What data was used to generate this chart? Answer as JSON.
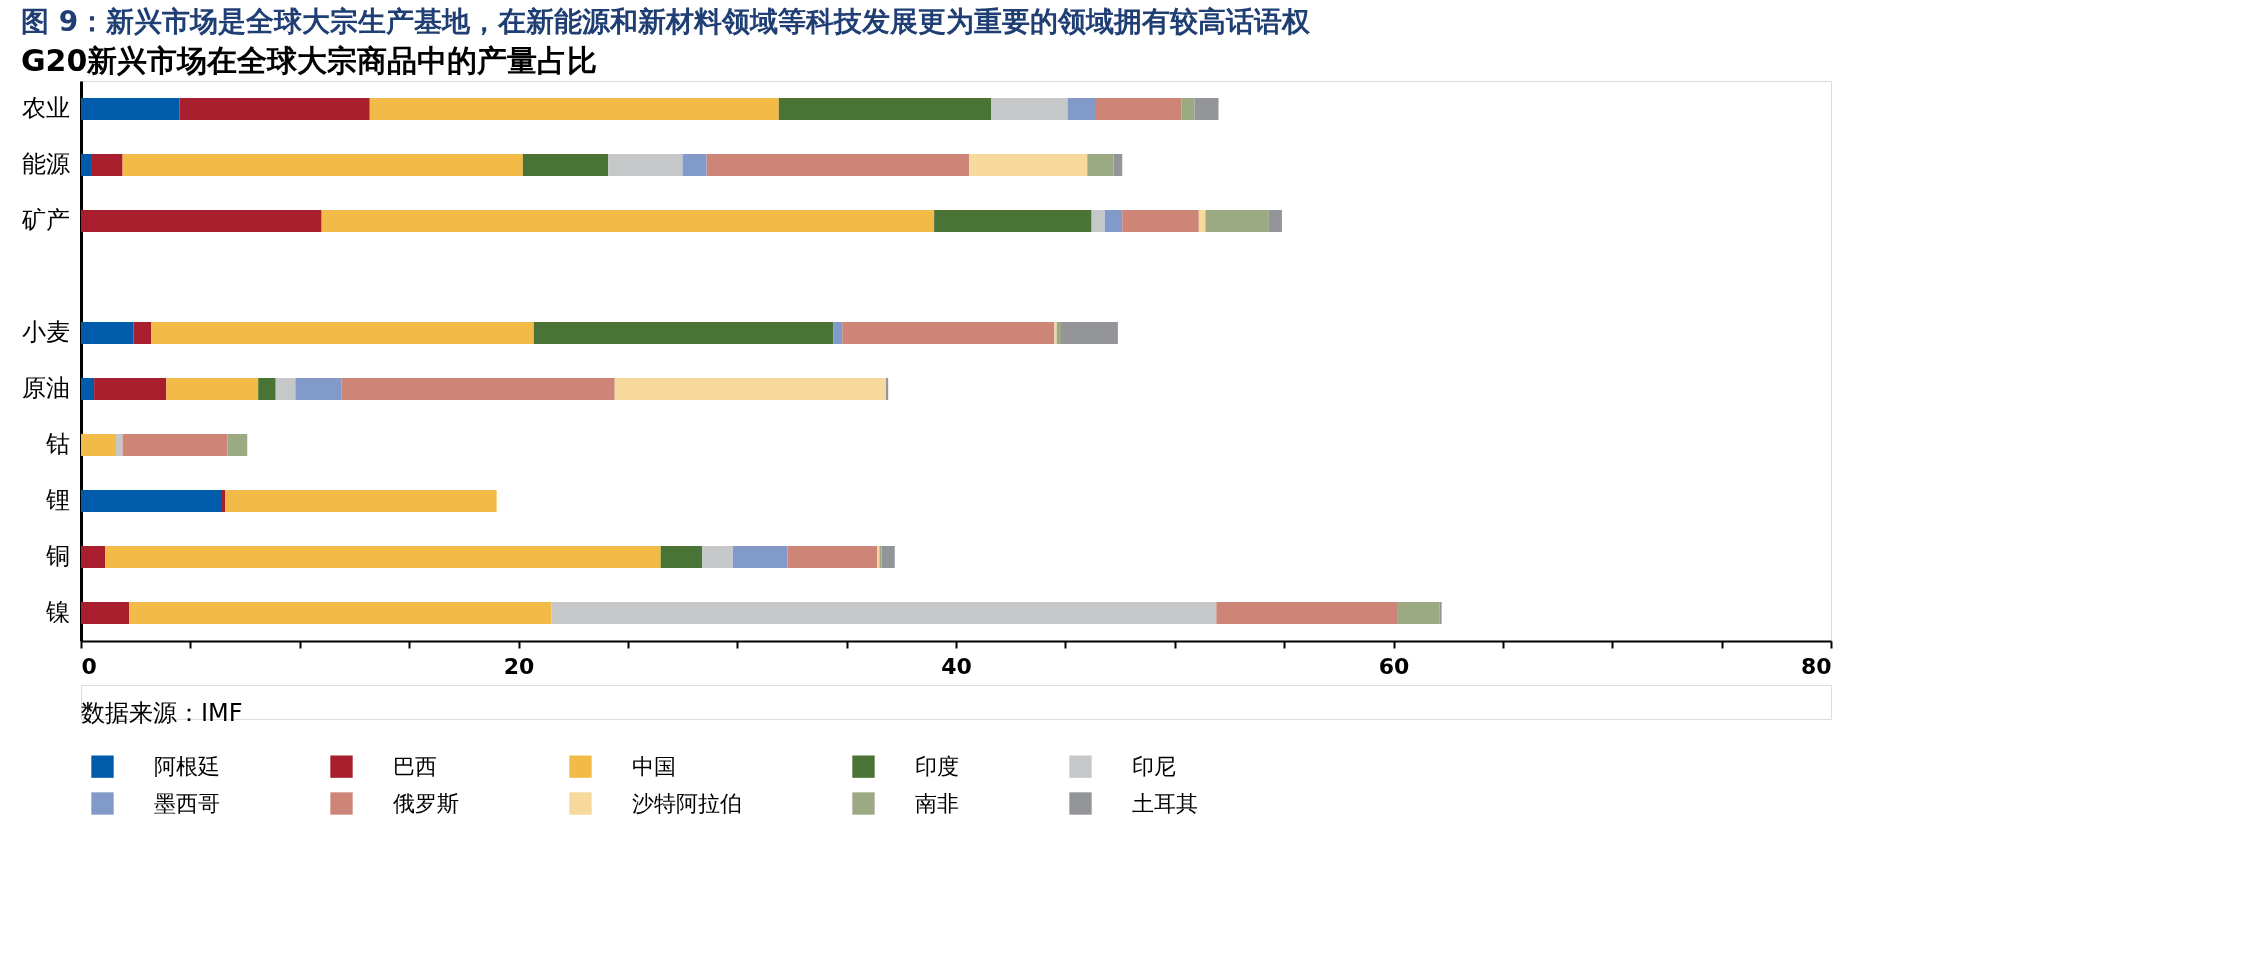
{
  "chart_data": {
    "type": "bar",
    "orientation": "horizontal",
    "stacked": true,
    "title": "图 9：新兴市场是全球大宗生产基地，在新能源和新材料领域等科技发展更为重要的领域拥有较高话语权",
    "subtitle": "G20新兴市场在全球大宗商品中的产量占比",
    "categories": [
      "农业",
      "能源",
      "矿产",
      null,
      "小麦",
      "原油",
      "钴",
      "锂",
      "铜",
      "镍"
    ],
    "series": [
      {
        "name": "阿根廷",
        "color": "#005bab",
        "values": [
          4.5,
          0.5,
          null,
          null,
          2.4,
          0.6,
          null,
          6.4,
          null,
          null
        ]
      },
      {
        "name": "巴西",
        "color": "#a81e2d",
        "values": [
          8.7,
          1.4,
          11.0,
          null,
          0.8,
          3.3,
          null,
          0.2,
          1.1,
          2.2
        ]
      },
      {
        "name": "中国",
        "color": "#f2bb48",
        "values": [
          18.7,
          18.3,
          28.0,
          null,
          17.5,
          4.2,
          1.6,
          12.4,
          25.4,
          19.3
        ]
      },
      {
        "name": "印度",
        "color": "#4a7435",
        "values": [
          9.7,
          3.9,
          7.2,
          null,
          13.7,
          0.8,
          null,
          null,
          1.9,
          null
        ]
      },
      {
        "name": "印尼",
        "color": "#c6c7c9",
        "values": [
          3.5,
          3.4,
          0.6,
          null,
          null,
          0.9,
          0.3,
          null,
          1.4,
          30.4
        ]
      },
      {
        "name": "墨西哥",
        "color": "#829aca",
        "values": [
          1.3,
          1.1,
          0.8,
          null,
          0.4,
          2.1,
          null,
          null,
          2.5,
          null
        ]
      },
      {
        "name": "俄罗斯",
        "color": "#cd8577",
        "values": [
          3.9,
          12.0,
          3.5,
          null,
          9.7,
          12.5,
          4.8,
          null,
          4.1,
          8.3
        ]
      },
      {
        "name": "沙特阿拉伯",
        "color": "#f7d99e",
        "values": [
          null,
          5.4,
          0.3,
          null,
          0.1,
          12.4,
          null,
          null,
          0.1,
          null
        ]
      },
      {
        "name": "南非",
        "color": "#9caa83",
        "values": [
          0.6,
          1.2,
          2.9,
          null,
          0.2,
          null,
          0.9,
          null,
          0.1,
          1.9
        ]
      },
      {
        "name": "土耳其",
        "color": "#949599",
        "values": [
          1.1,
          0.4,
          0.6,
          null,
          2.6,
          0.1,
          null,
          null,
          0.6,
          0.1
        ]
      }
    ],
    "xlim": [
      0,
      80
    ],
    "xticks": [
      0,
      {
        "value": 5,
        "label": null
      },
      {
        "value": 10,
        "label": null
      },
      {
        "value": 15,
        "label": null
      },
      20,
      {
        "value": 25,
        "label": null
      },
      {
        "value": 30,
        "label": null
      },
      {
        "value": 35,
        "label": null
      },
      40,
      {
        "value": 45,
        "label": null
      },
      {
        "value": 50,
        "label": null
      },
      {
        "value": 55,
        "label": null
      },
      60,
      {
        "value": 65,
        "label": null
      },
      {
        "value": 70,
        "label": null
      },
      {
        "value": 75,
        "label": null
      },
      80
    ],
    "grid": false,
    "legend": "bottom",
    "annotations": [
      "数据来源：IMF"
    ]
  }
}
